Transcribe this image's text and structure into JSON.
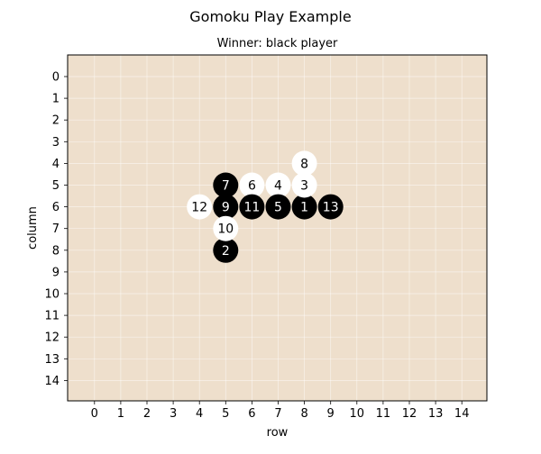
{
  "figure": {
    "title": "Gomoku Play Example",
    "subtitle": "Winner: black player",
    "xlabel": "row",
    "ylabel": "column",
    "board_color": "#eedfcc",
    "grid_color": "#ffffff"
  },
  "board": {
    "size": 15,
    "x_ticks": [
      "0",
      "1",
      "2",
      "3",
      "4",
      "5",
      "6",
      "7",
      "8",
      "9",
      "10",
      "11",
      "12",
      "13",
      "14"
    ],
    "y_ticks": [
      "0",
      "1",
      "2",
      "3",
      "4",
      "5",
      "6",
      "7",
      "8",
      "9",
      "10",
      "11",
      "12",
      "13",
      "14"
    ],
    "stones": [
      {
        "move": "1",
        "row": 8,
        "col": 6,
        "color": "black"
      },
      {
        "move": "2",
        "row": 5,
        "col": 8,
        "color": "black"
      },
      {
        "move": "3",
        "row": 8,
        "col": 5,
        "color": "white"
      },
      {
        "move": "4",
        "row": 7,
        "col": 5,
        "color": "white"
      },
      {
        "move": "5",
        "row": 7,
        "col": 6,
        "color": "black"
      },
      {
        "move": "6",
        "row": 6,
        "col": 5,
        "color": "white"
      },
      {
        "move": "7",
        "row": 5,
        "col": 5,
        "color": "black"
      },
      {
        "move": "8",
        "row": 8,
        "col": 4,
        "color": "white"
      },
      {
        "move": "9",
        "row": 5,
        "col": 6,
        "color": "black"
      },
      {
        "move": "10",
        "row": 5,
        "col": 7,
        "color": "white"
      },
      {
        "move": "11",
        "row": 6,
        "col": 6,
        "color": "black"
      },
      {
        "move": "12",
        "row": 4,
        "col": 6,
        "color": "white"
      },
      {
        "move": "13",
        "row": 9,
        "col": 6,
        "color": "black"
      }
    ]
  }
}
